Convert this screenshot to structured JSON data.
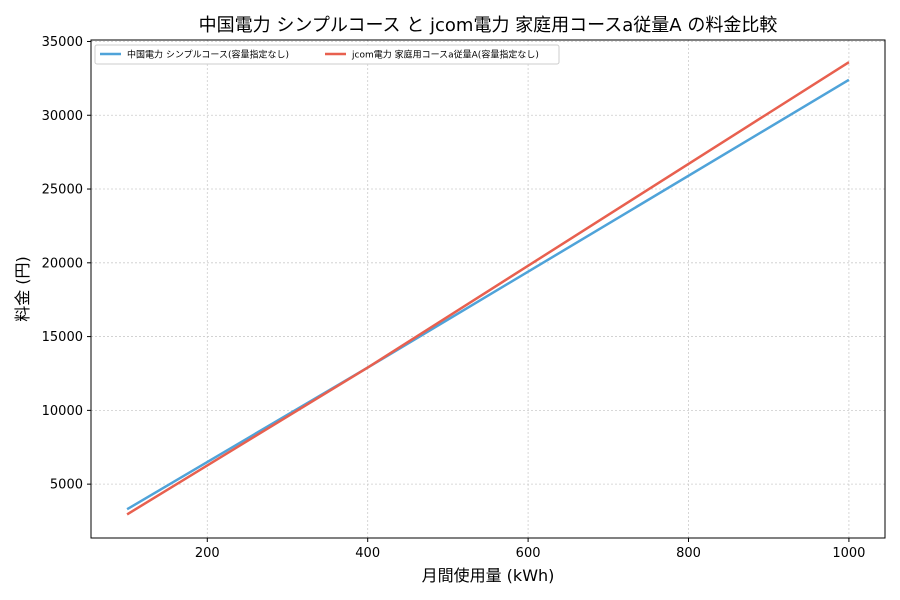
{
  "chart_data": {
    "type": "line",
    "title": "中国電力 シンプルコース と jcom電力 家庭用コースa従量A の料金比較",
    "xlabel": "月間使用量 (kWh)",
    "ylabel": "料金 (円)",
    "xlim": [
      55,
      1045
    ],
    "ylim": [
      1350,
      35100
    ],
    "xticks": [
      200,
      400,
      600,
      800,
      1000
    ],
    "yticks": [
      5000,
      10000,
      15000,
      20000,
      25000,
      30000,
      35000
    ],
    "grid": true,
    "legend_position": "top-left",
    "series": [
      {
        "name": "中国電力 シンプルコース(容量指定なし)",
        "color": "#4fa3d9",
        "x": [
          100,
          400,
          1000
        ],
        "y": [
          3300,
          12900,
          32400
        ]
      },
      {
        "name": "jcom電力 家庭用コースa従量A(容量指定なし)",
        "color": "#e8604f",
        "x": [
          100,
          400,
          1000
        ],
        "y": [
          2950,
          12900,
          33600
        ]
      }
    ]
  }
}
